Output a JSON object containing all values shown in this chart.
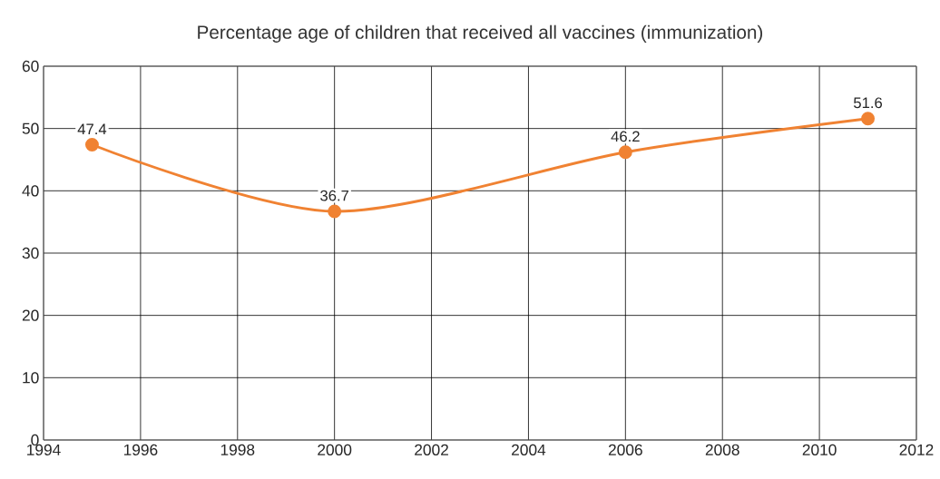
{
  "chart_data": {
    "type": "line",
    "title": "Percentage age of children that received all vaccines (immunization)",
    "x": [
      1995,
      2000,
      2006,
      2011
    ],
    "series": [
      {
        "color": "#f08232",
        "values": [
          47.4,
          36.7,
          46.2,
          51.6
        ]
      }
    ],
    "xlim": [
      1994,
      2012
    ],
    "xticks": [
      1994,
      1996,
      1998,
      2000,
      2002,
      2004,
      2006,
      2008,
      2010,
      2012
    ],
    "ylim": [
      0,
      60
    ],
    "yticks": [
      0,
      10,
      20,
      30,
      40,
      50,
      60
    ],
    "grid": true,
    "marker": "circle",
    "line_style": "solid",
    "data_labels": true
  }
}
